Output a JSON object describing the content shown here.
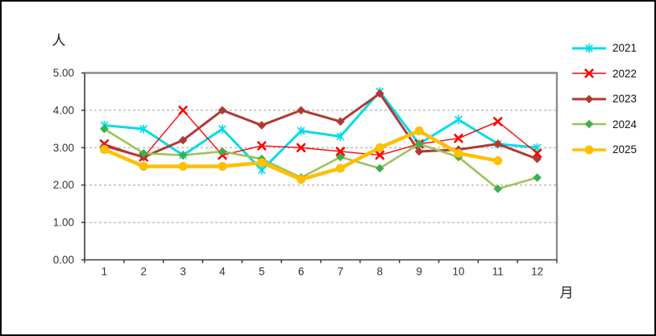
{
  "chart_data": {
    "type": "line",
    "title": "",
    "ylabel": "人",
    "xlabel": "月",
    "categories": [
      "1",
      "2",
      "3",
      "4",
      "5",
      "6",
      "7",
      "8",
      "9",
      "10",
      "11",
      "12"
    ],
    "ylim": [
      0,
      5
    ],
    "ytick_interval": 1.0,
    "ytick_labels": [
      "0.00",
      "1.00",
      "2.00",
      "3.00",
      "4.00",
      "5.00"
    ],
    "grid": "horizontal-dashed",
    "legend_position": "right",
    "series": [
      {
        "name": "2021",
        "color": "#00DCE8",
        "marker": "asterisk",
        "line_width": 3,
        "values": [
          3.6,
          3.5,
          2.8,
          3.5,
          2.4,
          3.45,
          3.3,
          4.5,
          3.1,
          3.75,
          3.1,
          3.0
        ]
      },
      {
        "name": "2022",
        "color": "#FF0000",
        "marker": "x",
        "line_width": 1.4,
        "values": [
          3.1,
          2.75,
          4.0,
          2.8,
          3.05,
          3.0,
          2.9,
          2.8,
          3.1,
          3.25,
          3.7,
          2.85
        ]
      },
      {
        "name": "2023",
        "color": "#B03A33",
        "marker": "diamond",
        "line_width": 3,
        "values": [
          3.05,
          2.75,
          3.2,
          4.0,
          3.6,
          4.0,
          3.7,
          4.45,
          2.9,
          2.95,
          3.1,
          2.7
        ]
      },
      {
        "name": "2024",
        "color": "#9DC356",
        "marker": "diamond",
        "marker_color": "#3EAE4F",
        "line_width": 2.6,
        "values": [
          3.5,
          2.85,
          2.8,
          2.9,
          2.7,
          2.2,
          2.75,
          2.45,
          3.1,
          2.75,
          1.9,
          2.2
        ]
      },
      {
        "name": "2025",
        "color": "#FFC000",
        "marker": "circle",
        "line_width": 4.5,
        "values": [
          2.95,
          2.5,
          2.5,
          2.5,
          2.6,
          2.15,
          2.45,
          3.0,
          3.45,
          2.85,
          2.65,
          null
        ]
      }
    ]
  }
}
